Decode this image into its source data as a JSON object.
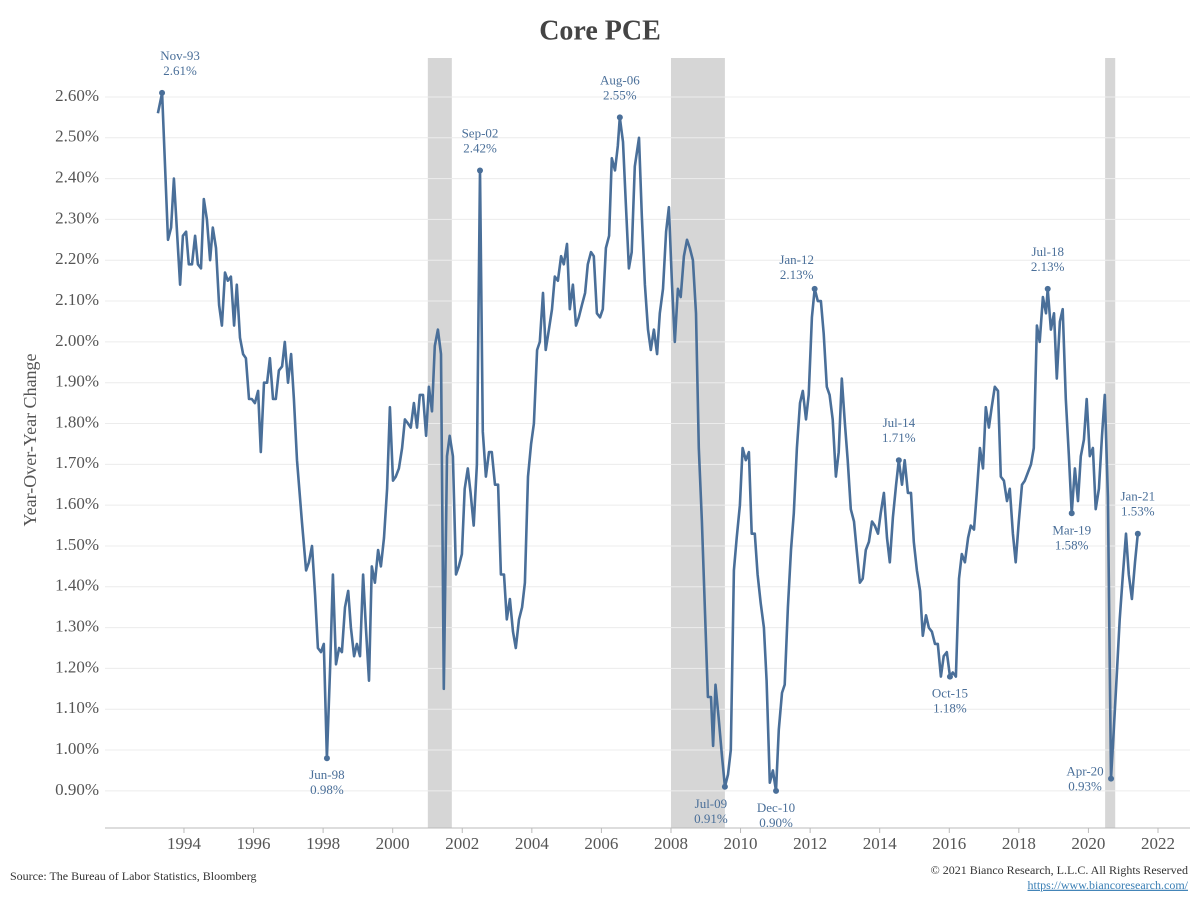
{
  "chart_data": {
    "type": "line",
    "title": "Core PCE",
    "y_label": "Year-Over-Year Change",
    "source": "Source: The Bureau of Labor Statistics, Bloomberg",
    "copyright": "© 2021 Bianco Research, L.L.C. All Rights Reserved",
    "url": "https://www.biancoresearch.com/",
    "xlim": [
      1991.73,
      2022.92
    ],
    "ylim": [
      0.809,
      2.6955
    ],
    "xticks": [
      1994,
      1996,
      1998,
      2000,
      2002,
      2004,
      2006,
      2008,
      2010,
      2012,
      2014,
      2016,
      2018,
      2020,
      2022
    ],
    "yticks": [
      {
        "value": 0.9,
        "label": "0.90%"
      },
      {
        "value": 1.0,
        "label": "1.00%"
      },
      {
        "value": 1.1,
        "label": "1.10%"
      },
      {
        "value": 1.2,
        "label": "1.20%"
      },
      {
        "value": 1.3,
        "label": "1.30%"
      },
      {
        "value": 1.4,
        "label": "1.40%"
      },
      {
        "value": 1.5,
        "label": "1.50%"
      },
      {
        "value": 1.6,
        "label": "1.60%"
      },
      {
        "value": 1.7,
        "label": "1.70%"
      },
      {
        "value": 1.8,
        "label": "1.80%"
      },
      {
        "value": 1.9,
        "label": "1.90%"
      },
      {
        "value": 2.0,
        "label": "2.00%"
      },
      {
        "value": 2.1,
        "label": "2.10%"
      },
      {
        "value": 2.2,
        "label": "2.20%"
      },
      {
        "value": 2.3,
        "label": "2.30%"
      },
      {
        "value": 2.4,
        "label": "2.40%"
      },
      {
        "value": 2.5,
        "label": "2.50%"
      },
      {
        "value": 2.6,
        "label": "2.60%"
      }
    ],
    "grid": true,
    "shaded_periods": [
      [
        2001.01,
        2001.7
      ],
      [
        2008.0,
        2009.55
      ],
      [
        2020.48,
        2020.77
      ]
    ],
    "shade_color": "#d6d6d6",
    "series": [
      {
        "color": "#4a6f99",
        "x": [
          1993.25,
          1993.37,
          1993.54,
          1993.63,
          1993.71,
          1993.89,
          1993.97,
          1994.06,
          1994.14,
          1994.23,
          1994.32,
          1994.4,
          1994.49,
          1994.57,
          1994.66,
          1994.75,
          1994.83,
          1994.92,
          1995.01,
          1995.09,
          1995.18,
          1995.26,
          1995.35,
          1995.44,
          1995.52,
          1995.61,
          1995.7,
          1995.78,
          1995.87,
          1995.95,
          1996.04,
          1996.13,
          1996.21,
          1996.3,
          1996.39,
          1996.47,
          1996.56,
          1996.64,
          1996.73,
          1996.82,
          1996.9,
          1996.99,
          1997.08,
          1997.16,
          1997.25,
          1997.39,
          1997.51,
          1997.59,
          1997.68,
          1997.77,
          1997.85,
          1997.94,
          1998.02,
          1998.11,
          1998.2,
          1998.28,
          1998.37,
          1998.46,
          1998.54,
          1998.63,
          1998.72,
          1998.8,
          1998.89,
          1998.97,
          1999.06,
          1999.15,
          1999.23,
          1999.32,
          1999.4,
          1999.49,
          1999.58,
          1999.66,
          1999.75,
          1999.84,
          1999.92,
          2000.01,
          2000.09,
          2000.18,
          2000.27,
          2000.35,
          2000.44,
          2000.52,
          2000.61,
          2000.7,
          2000.78,
          2000.87,
          2000.96,
          2001.04,
          2001.13,
          2001.21,
          2001.3,
          2001.39,
          2001.47,
          2001.56,
          2001.64,
          2001.73,
          2001.82,
          2001.9,
          2001.99,
          2002.07,
          2002.16,
          2002.24,
          2002.33,
          2002.42,
          2002.51,
          2002.59,
          2002.68,
          2002.77,
          2002.85,
          2002.94,
          2003.03,
          2003.11,
          2003.2,
          2003.28,
          2003.37,
          2003.46,
          2003.54,
          2003.63,
          2003.72,
          2003.8,
          2003.89,
          2003.98,
          2004.06,
          2004.15,
          2004.23,
          2004.32,
          2004.4,
          2004.49,
          2004.58,
          2004.66,
          2004.75,
          2004.84,
          2004.92,
          2005.01,
          2005.09,
          2005.18,
          2005.27,
          2005.35,
          2005.44,
          2005.53,
          2005.61,
          2005.7,
          2005.78,
          2005.87,
          2005.96,
          2006.04,
          2006.13,
          2006.22,
          2006.3,
          2006.39,
          2006.47,
          2006.53,
          2006.62,
          2006.7,
          2006.79,
          2006.87,
          2006.96,
          2007.08,
          2007.16,
          2007.25,
          2007.34,
          2007.42,
          2007.51,
          2007.6,
          2007.68,
          2007.77,
          2007.86,
          2007.94,
          2008.03,
          2008.11,
          2008.2,
          2008.28,
          2008.37,
          2008.46,
          2008.54,
          2008.63,
          2008.72,
          2008.8,
          2008.89,
          2008.98,
          2009.06,
          2009.15,
          2009.21,
          2009.28,
          2009.37,
          2009.46,
          2009.55,
          2009.64,
          2009.72,
          2009.81,
          2009.89,
          2009.98,
          2010.06,
          2010.15,
          2010.24,
          2010.32,
          2010.41,
          2010.49,
          2010.58,
          2010.67,
          2010.75,
          2010.84,
          2010.93,
          2011.02,
          2011.1,
          2011.19,
          2011.27,
          2011.36,
          2011.45,
          2011.53,
          2011.62,
          2011.71,
          2011.79,
          2011.88,
          2011.96,
          2012.05,
          2012.13,
          2012.22,
          2012.31,
          2012.39,
          2012.48,
          2012.56,
          2012.65,
          2012.74,
          2012.82,
          2012.91,
          2013.0,
          2013.08,
          2013.17,
          2013.26,
          2013.34,
          2013.43,
          2013.51,
          2013.6,
          2013.69,
          2013.78,
          2013.86,
          2013.95,
          2014.03,
          2014.12,
          2014.21,
          2014.29,
          2014.38,
          2014.47,
          2014.55,
          2014.64,
          2014.72,
          2014.81,
          2014.9,
          2014.98,
          2015.07,
          2015.16,
          2015.24,
          2015.33,
          2015.41,
          2015.5,
          2015.59,
          2015.67,
          2015.76,
          2015.84,
          2015.93,
          2016.02,
          2016.1,
          2016.19,
          2016.28,
          2016.36,
          2016.45,
          2016.54,
          2016.62,
          2016.71,
          2016.79,
          2016.88,
          2016.97,
          2017.05,
          2017.14,
          2017.22,
          2017.31,
          2017.4,
          2017.48,
          2017.57,
          2017.66,
          2017.74,
          2017.83,
          2017.91,
          2018.0,
          2018.09,
          2018.17,
          2018.26,
          2018.35,
          2018.43,
          2018.52,
          2018.6,
          2018.69,
          2018.78,
          2018.83,
          2018.92,
          2019.01,
          2019.09,
          2019.18,
          2019.26,
          2019.35,
          2019.44,
          2019.52,
          2019.61,
          2019.7,
          2019.78,
          2019.87,
          2019.95,
          2020.04,
          2020.13,
          2020.21,
          2020.3,
          2020.39,
          2020.47,
          2020.56,
          2020.65,
          2020.73,
          2020.82,
          2020.9,
          2020.99,
          2021.08,
          2021.16,
          2021.25,
          2021.34,
          2021.42
        ],
        "values": [
          2.56,
          2.61,
          2.25,
          2.28,
          2.4,
          2.14,
          2.26,
          2.27,
          2.19,
          2.19,
          2.26,
          2.19,
          2.18,
          2.35,
          2.3,
          2.2,
          2.28,
          2.23,
          2.09,
          2.04,
          2.17,
          2.15,
          2.16,
          2.04,
          2.14,
          2.01,
          1.97,
          1.96,
          1.86,
          1.86,
          1.85,
          1.88,
          1.73,
          1.9,
          1.9,
          1.96,
          1.86,
          1.86,
          1.93,
          1.94,
          2.0,
          1.9,
          1.97,
          1.86,
          1.71,
          1.56,
          1.44,
          1.46,
          1.5,
          1.38,
          1.25,
          1.24,
          1.26,
          0.98,
          1.2,
          1.43,
          1.21,
          1.25,
          1.24,
          1.35,
          1.39,
          1.3,
          1.23,
          1.26,
          1.23,
          1.43,
          1.3,
          1.17,
          1.45,
          1.41,
          1.49,
          1.45,
          1.52,
          1.64,
          1.84,
          1.66,
          1.67,
          1.69,
          1.74,
          1.81,
          1.8,
          1.79,
          1.85,
          1.79,
          1.87,
          1.87,
          1.77,
          1.89,
          1.83,
          1.99,
          2.03,
          1.97,
          1.15,
          1.72,
          1.77,
          1.72,
          1.43,
          1.45,
          1.48,
          1.64,
          1.69,
          1.63,
          1.55,
          1.7,
          2.42,
          1.78,
          1.67,
          1.73,
          1.73,
          1.65,
          1.65,
          1.43,
          1.43,
          1.32,
          1.37,
          1.29,
          1.25,
          1.32,
          1.35,
          1.41,
          1.67,
          1.75,
          1.8,
          1.98,
          2.0,
          2.12,
          1.98,
          2.03,
          2.08,
          2.16,
          2.15,
          2.21,
          2.19,
          2.24,
          2.08,
          2.14,
          2.04,
          2.06,
          2.09,
          2.12,
          2.19,
          2.22,
          2.21,
          2.07,
          2.06,
          2.08,
          2.23,
          2.26,
          2.45,
          2.42,
          2.48,
          2.55,
          2.49,
          2.34,
          2.18,
          2.22,
          2.43,
          2.5,
          2.31,
          2.14,
          2.03,
          1.98,
          2.03,
          1.97,
          2.07,
          2.13,
          2.27,
          2.33,
          2.14,
          2.0,
          2.13,
          2.11,
          2.21,
          2.25,
          2.23,
          2.2,
          2.07,
          1.74,
          1.56,
          1.33,
          1.13,
          1.13,
          1.01,
          1.16,
          1.08,
          0.99,
          0.91,
          0.94,
          1.0,
          1.44,
          1.52,
          1.6,
          1.74,
          1.71,
          1.73,
          1.53,
          1.53,
          1.43,
          1.36,
          1.3,
          1.17,
          0.92,
          0.95,
          0.9,
          1.05,
          1.14,
          1.16,
          1.35,
          1.49,
          1.58,
          1.74,
          1.85,
          1.88,
          1.81,
          1.87,
          2.06,
          2.13,
          2.1,
          2.1,
          2.02,
          1.89,
          1.87,
          1.81,
          1.67,
          1.73,
          1.91,
          1.8,
          1.71,
          1.59,
          1.56,
          1.49,
          1.41,
          1.42,
          1.49,
          1.51,
          1.56,
          1.55,
          1.53,
          1.58,
          1.63,
          1.52,
          1.46,
          1.57,
          1.65,
          1.71,
          1.65,
          1.71,
          1.63,
          1.63,
          1.51,
          1.44,
          1.39,
          1.28,
          1.33,
          1.3,
          1.29,
          1.26,
          1.26,
          1.18,
          1.23,
          1.24,
          1.18,
          1.19,
          1.18,
          1.42,
          1.48,
          1.46,
          1.52,
          1.55,
          1.54,
          1.63,
          1.74,
          1.69,
          1.84,
          1.79,
          1.84,
          1.89,
          1.88,
          1.67,
          1.66,
          1.61,
          1.64,
          1.53,
          1.46,
          1.56,
          1.65,
          1.66,
          1.68,
          1.7,
          1.74,
          2.04,
          2.0,
          2.11,
          2.07,
          2.13,
          2.03,
          2.07,
          1.91,
          2.05,
          2.08,
          1.86,
          1.72,
          1.58,
          1.69,
          1.61,
          1.72,
          1.76,
          1.86,
          1.72,
          1.74,
          1.59,
          1.64,
          1.77,
          1.87,
          1.62,
          0.93,
          1.05,
          1.19,
          1.32,
          1.43,
          1.53,
          1.43,
          1.37,
          1.46,
          1.53
        ]
      }
    ],
    "annotations": [
      {
        "label": "Nov-93",
        "value_label": "2.61%",
        "x": 1993.37,
        "y": 2.61,
        "position": "above-right"
      },
      {
        "label": "Jun-98",
        "value_label": "0.98%",
        "x": 1998.11,
        "y": 0.98,
        "position": "below"
      },
      {
        "label": "Sep-02",
        "value_label": "2.42%",
        "x": 2002.51,
        "y": 2.42,
        "position": "above"
      },
      {
        "label": "Aug-06",
        "value_label": "2.55%",
        "x": 2006.53,
        "y": 2.55,
        "position": "above"
      },
      {
        "label": "Jul-09",
        "value_label": "0.91%",
        "x": 2009.55,
        "y": 0.91,
        "position": "below-left"
      },
      {
        "label": "Dec-10",
        "value_label": "0.90%",
        "x": 2011.02,
        "y": 0.9,
        "position": "below"
      },
      {
        "label": "Jan-12",
        "value_label": "2.13%",
        "x": 2012.13,
        "y": 2.13,
        "position": "above-left"
      },
      {
        "label": "Jul-14",
        "value_label": "1.71%",
        "x": 2014.55,
        "y": 1.71,
        "position": "above"
      },
      {
        "label": "Oct-15",
        "value_label": "1.18%",
        "x": 2016.02,
        "y": 1.18,
        "position": "below"
      },
      {
        "label": "Jul-18",
        "value_label": "2.13%",
        "x": 2018.83,
        "y": 2.13,
        "position": "above"
      },
      {
        "label": "Mar-19",
        "value_label": "1.58%",
        "x": 2019.52,
        "y": 1.58,
        "position": "below"
      },
      {
        "label": "Apr-20",
        "value_label": "0.93%",
        "x": 2020.65,
        "y": 0.93,
        "position": "left"
      },
      {
        "label": "Jan-21",
        "value_label": "1.53%",
        "x": 2021.42,
        "y": 1.53,
        "position": "above"
      }
    ]
  }
}
